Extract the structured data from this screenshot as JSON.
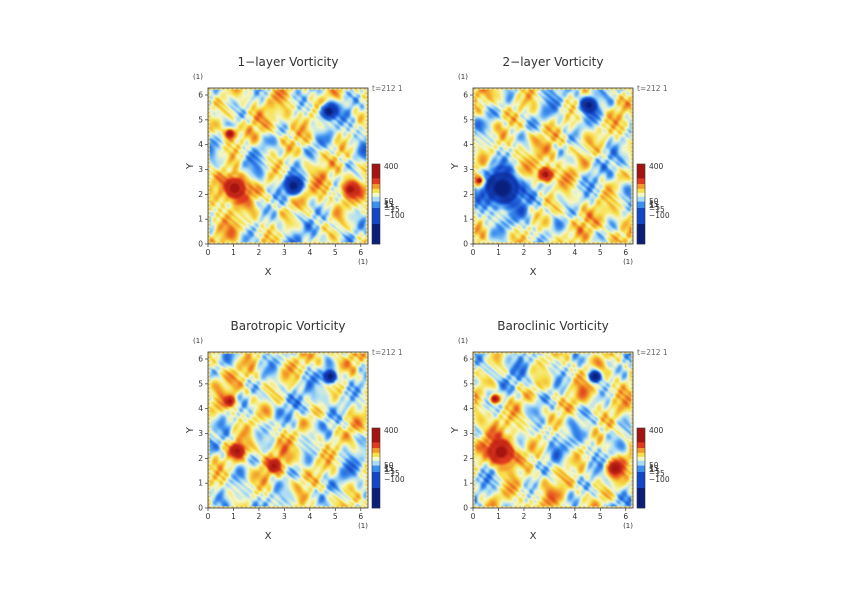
{
  "figure": {
    "background": "#ffffff",
    "colormap": [
      "#0a1f7a",
      "#1446c8",
      "#3c8ef0",
      "#a8dcf7",
      "#f4f7c8",
      "#f7e04a",
      "#f49a2a",
      "#e03b1e",
      "#a51410"
    ]
  },
  "chart_data": [
    {
      "type": "heatmap",
      "title": "1−layer Vorticity",
      "xlabel": "X",
      "ylabel": "Y",
      "x_unit": "(1)",
      "y_unit": "(1)",
      "xlim": [
        0,
        6.283
      ],
      "ylim": [
        0,
        6.283
      ],
      "x_ticks": [
        "0",
        "1",
        "2",
        "3",
        "4",
        "5",
        "6"
      ],
      "y_ticks": [
        "0",
        "1",
        "2",
        "3",
        "4",
        "5",
        "6"
      ],
      "time_label": "t=212 1",
      "colorbar": {
        "labels": [
          "400",
          "50",
          "15",
          "5",
          "−5",
          "−15",
          "−100"
        ]
      },
      "features": [
        {
          "kind": "vortex",
          "x": 1.05,
          "y": 2.25,
          "r": 0.55,
          "sign": 1
        },
        {
          "kind": "vortex",
          "x": 0.85,
          "y": 4.45,
          "r": 0.22,
          "sign": 1
        },
        {
          "kind": "vortex",
          "x": 4.75,
          "y": 5.35,
          "r": 0.32,
          "sign": -1
        },
        {
          "kind": "vortex",
          "x": 3.35,
          "y": 2.35,
          "r": 0.35,
          "sign": -1
        },
        {
          "kind": "vortex",
          "x": 5.6,
          "y": 2.2,
          "r": 0.3,
          "sign": 1
        }
      ]
    },
    {
      "type": "heatmap",
      "title": "2−layer Vorticity",
      "xlabel": "X",
      "ylabel": "Y",
      "x_unit": "(1)",
      "y_unit": "(1)",
      "xlim": [
        0,
        6.283
      ],
      "ylim": [
        0,
        6.283
      ],
      "x_ticks": [
        "0",
        "1",
        "2",
        "3",
        "4",
        "5",
        "6"
      ],
      "y_ticks": [
        "0",
        "1",
        "2",
        "3",
        "4",
        "5",
        "6"
      ],
      "time_label": "t=212 1",
      "colorbar": {
        "labels": [
          "400",
          "50",
          "15",
          "5",
          "−5",
          "−15",
          "−100"
        ]
      },
      "features": [
        {
          "kind": "vortex",
          "x": 0.25,
          "y": 2.55,
          "r": 0.22,
          "sign": 1
        },
        {
          "kind": "vortex",
          "x": 1.15,
          "y": 2.25,
          "r": 0.75,
          "sign": -1
        },
        {
          "kind": "vortex",
          "x": 4.55,
          "y": 5.6,
          "r": 0.3,
          "sign": -1
        },
        {
          "kind": "vortex",
          "x": 2.85,
          "y": 2.8,
          "r": 0.3,
          "sign": 1
        }
      ]
    },
    {
      "type": "heatmap",
      "title": "Barotropic Vorticity",
      "xlabel": "X",
      "ylabel": "Y",
      "x_unit": "(1)",
      "y_unit": "(1)",
      "xlim": [
        0,
        6.283
      ],
      "ylim": [
        0,
        6.283
      ],
      "x_ticks": [
        "0",
        "1",
        "2",
        "3",
        "4",
        "5",
        "6"
      ],
      "y_ticks": [
        "0",
        "1",
        "2",
        "3",
        "4",
        "5",
        "6"
      ],
      "time_label": "t=212 1",
      "colorbar": {
        "labels": [
          "400",
          "50",
          "15",
          "5",
          "−5",
          "−15",
          "−100"
        ]
      },
      "features": [
        {
          "kind": "vortex",
          "x": 1.15,
          "y": 2.3,
          "r": 0.3,
          "sign": 1
        },
        {
          "kind": "vortex",
          "x": 0.85,
          "y": 4.3,
          "r": 0.18,
          "sign": 1
        },
        {
          "kind": "vortex",
          "x": 4.8,
          "y": 5.3,
          "r": 0.28,
          "sign": -1
        },
        {
          "kind": "vortex",
          "x": 2.6,
          "y": 1.7,
          "r": 0.25,
          "sign": 1
        }
      ]
    },
    {
      "type": "heatmap",
      "title": "Baroclinic Vorticity",
      "xlabel": "X",
      "ylabel": "Y",
      "x_unit": "(1)",
      "y_unit": "(1)",
      "xlim": [
        0,
        6.283
      ],
      "ylim": [
        0,
        6.283
      ],
      "x_ticks": [
        "0",
        "1",
        "2",
        "3",
        "4",
        "5",
        "6"
      ],
      "y_ticks": [
        "0",
        "1",
        "2",
        "3",
        "4",
        "5",
        "6"
      ],
      "time_label": "t=212 1",
      "colorbar": {
        "labels": [
          "400",
          "50",
          "15",
          "5",
          "−5",
          "−15",
          "−100"
        ]
      },
      "features": [
        {
          "kind": "vortex",
          "x": 1.1,
          "y": 2.25,
          "r": 0.55,
          "sign": 1
        },
        {
          "kind": "vortex",
          "x": 4.8,
          "y": 5.3,
          "r": 0.25,
          "sign": -1
        },
        {
          "kind": "vortex",
          "x": 0.85,
          "y": 4.4,
          "r": 0.18,
          "sign": 1
        },
        {
          "kind": "vortex",
          "x": 5.6,
          "y": 1.6,
          "r": 0.3,
          "sign": 1
        }
      ]
    }
  ]
}
